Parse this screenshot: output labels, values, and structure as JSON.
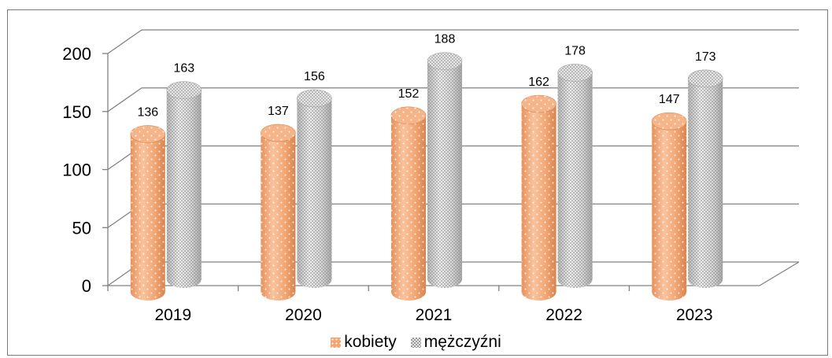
{
  "chart_data": {
    "type": "bar",
    "categories": [
      "2019",
      "2020",
      "2021",
      "2022",
      "2023"
    ],
    "series": [
      {
        "name": "kobiety",
        "values": [
          136,
          137,
          152,
          162,
          147
        ],
        "color": "#f2a673"
      },
      {
        "name": "mężczyźni",
        "values": [
          163,
          156,
          188,
          178,
          173
        ],
        "color": "#cfcfcf"
      }
    ],
    "ylim": [
      0,
      200
    ],
    "yticks": [
      "0",
      "50",
      "100",
      "150",
      "200"
    ],
    "grid": true,
    "style": "3d-cylinder",
    "legend_position": "bottom"
  }
}
